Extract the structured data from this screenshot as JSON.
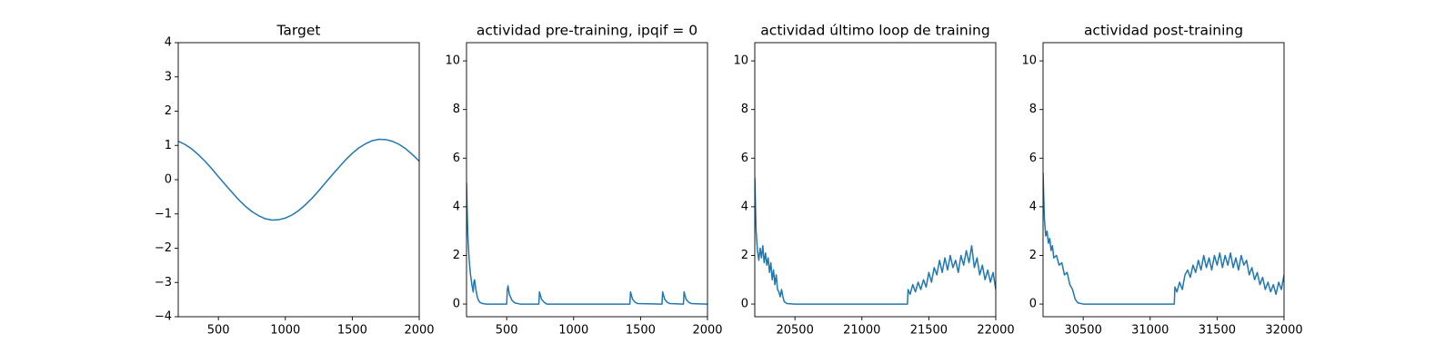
{
  "chart_data": [
    {
      "type": "line",
      "title": "Target",
      "color": "#1f77b4",
      "x": [
        200,
        250,
        300,
        350,
        400,
        450,
        500,
        550,
        600,
        650,
        700,
        750,
        800,
        850,
        900,
        950,
        1000,
        1050,
        1100,
        1150,
        1200,
        1250,
        1300,
        1350,
        1400,
        1450,
        1500,
        1550,
        1600,
        1650,
        1700,
        1750,
        1800,
        1850,
        1900,
        1950,
        2000
      ],
      "values": [
        1.12,
        1.03,
        0.9,
        0.73,
        0.54,
        0.32,
        0.09,
        -0.14,
        -0.36,
        -0.58,
        -0.77,
        -0.93,
        -1.05,
        -1.14,
        -1.18,
        -1.17,
        -1.12,
        -1.03,
        -0.9,
        -0.73,
        -0.54,
        -0.32,
        -0.09,
        0.14,
        0.36,
        0.58,
        0.77,
        0.93,
        1.05,
        1.14,
        1.18,
        1.17,
        1.12,
        1.03,
        0.9,
        0.73,
        0.54
      ],
      "xlim": [
        200,
        2000
      ],
      "xticks": [
        500,
        1000,
        1500,
        2000
      ],
      "ylim": [
        -4,
        4
      ],
      "yticks": [
        {
          "value": -4,
          "label": "−4"
        },
        {
          "value": -3,
          "label": "−3"
        },
        {
          "value": -2,
          "label": "−2"
        },
        {
          "value": -1,
          "label": "−1"
        },
        0,
        1,
        2,
        3,
        4
      ]
    },
    {
      "type": "line",
      "title": "actividad pre-training, ipqif = 0",
      "color": "#1f77b4",
      "x": [
        200,
        205,
        210,
        215,
        220,
        230,
        240,
        250,
        255,
        260,
        270,
        280,
        290,
        300,
        320,
        350,
        400,
        500,
        505,
        510,
        520,
        540,
        560,
        600,
        740,
        745,
        750,
        760,
        780,
        800,
        1420,
        1425,
        1430,
        1440,
        1460,
        1480,
        1660,
        1665,
        1670,
        1680,
        1700,
        1720,
        1820,
        1825,
        1830,
        1840,
        1860,
        1880,
        2000
      ],
      "values": [
        5.0,
        3.8,
        2.8,
        2.3,
        1.8,
        1.2,
        0.8,
        0.5,
        0.9,
        1.0,
        0.6,
        0.3,
        0.15,
        0.07,
        0.02,
        0,
        0,
        0,
        0.6,
        0.75,
        0.4,
        0.15,
        0.05,
        0,
        0,
        0.5,
        0.4,
        0.2,
        0.07,
        0,
        0,
        0.5,
        0.4,
        0.2,
        0.07,
        0.02,
        0,
        0.5,
        0.4,
        0.2,
        0.07,
        0.02,
        0,
        0.5,
        0.4,
        0.2,
        0.07,
        0.02,
        0
      ],
      "xlim": [
        200,
        2000
      ],
      "xticks": [
        500,
        1000,
        1500,
        2000
      ],
      "ylim": [
        -0.52,
        10.75
      ],
      "yticks": [
        0,
        2,
        4,
        6,
        8,
        10
      ]
    },
    {
      "type": "line",
      "title": "actividad último loop de training",
      "color": "#1f77b4",
      "x": [
        20200,
        20210,
        20220,
        20230,
        20240,
        20250,
        20260,
        20270,
        20280,
        20290,
        20300,
        20310,
        20320,
        20330,
        20340,
        20350,
        20360,
        20370,
        20380,
        20390,
        20400,
        20410,
        20420,
        20440,
        20500,
        21340,
        21345,
        21360,
        21380,
        21400,
        21420,
        21440,
        21460,
        21480,
        21500,
        21520,
        21540,
        21560,
        21580,
        21600,
        21620,
        21640,
        21660,
        21680,
        21700,
        21720,
        21740,
        21760,
        21780,
        21800,
        21820,
        21840,
        21860,
        21880,
        21900,
        21920,
        21940,
        21960,
        21980,
        22000
      ],
      "values": [
        5.2,
        3.0,
        2.2,
        1.8,
        2.3,
        1.9,
        2.4,
        1.7,
        2.1,
        1.6,
        1.9,
        1.3,
        1.7,
        1.0,
        1.4,
        0.8,
        1.2,
        0.6,
        0.5,
        0.3,
        0.6,
        0.3,
        0.1,
        0.02,
        0,
        0,
        0.6,
        0.4,
        0.8,
        0.5,
        0.9,
        0.6,
        1.0,
        0.7,
        1.3,
        0.9,
        1.5,
        1.2,
        1.8,
        1.3,
        1.9,
        1.4,
        2.0,
        1.5,
        1.8,
        1.3,
        2.0,
        1.6,
        2.2,
        1.7,
        2.4,
        1.5,
        1.9,
        1.2,
        1.6,
        1.0,
        1.4,
        0.9,
        1.3,
        0.6
      ],
      "xlim": [
        20200,
        22000
      ],
      "xticks": [
        20500,
        21000,
        21500,
        22000
      ],
      "ylim": [
        -0.52,
        10.75
      ],
      "yticks": [
        0,
        2,
        4,
        6,
        8,
        10
      ]
    },
    {
      "type": "line",
      "title": "actividad post-training",
      "color": "#1f77b4",
      "x": [
        30200,
        30210,
        30220,
        30230,
        30240,
        30250,
        30260,
        30270,
        30280,
        30300,
        30320,
        30340,
        30360,
        30380,
        30400,
        30420,
        30440,
        30460,
        30500,
        31180,
        31185,
        31200,
        31220,
        31240,
        31260,
        31280,
        31300,
        31320,
        31340,
        31360,
        31380,
        31400,
        31420,
        31440,
        31460,
        31480,
        31500,
        31520,
        31540,
        31560,
        31580,
        31600,
        31620,
        31640,
        31660,
        31680,
        31700,
        31720,
        31740,
        31760,
        31780,
        31800,
        31820,
        31840,
        31860,
        31880,
        31900,
        31920,
        31940,
        31960,
        31980,
        32000
      ],
      "values": [
        5.4,
        3.5,
        2.8,
        3.0,
        2.5,
        2.7,
        2.2,
        2.4,
        1.9,
        2.0,
        1.6,
        1.7,
        1.2,
        1.3,
        0.8,
        0.6,
        0.2,
        0.05,
        0,
        0,
        0.7,
        0.5,
        0.9,
        0.6,
        1.2,
        1.4,
        1.1,
        1.6,
        1.3,
        1.8,
        1.4,
        2.0,
        1.5,
        1.9,
        1.4,
        2.0,
        1.6,
        2.1,
        1.5,
        2.0,
        1.6,
        2.1,
        1.5,
        1.9,
        1.4,
        2.0,
        1.6,
        1.8,
        1.2,
        1.5,
        1.0,
        1.3,
        0.8,
        1.1,
        0.6,
        0.9,
        0.5,
        0.8,
        0.4,
        0.9,
        0.6,
        1.2
      ],
      "xlim": [
        30200,
        32000
      ],
      "xticks": [
        30500,
        31000,
        31500,
        32000
      ],
      "ylim": [
        -0.52,
        10.75
      ],
      "yticks": [
        0,
        2,
        4,
        6,
        8,
        10
      ]
    }
  ]
}
